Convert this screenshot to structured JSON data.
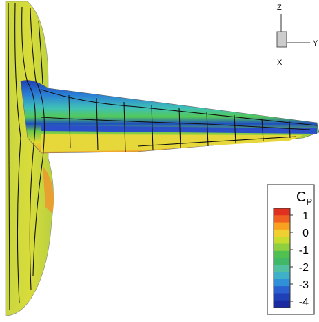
{
  "axes_triad": {
    "z": "Z",
    "y": "Y",
    "x": "X"
  },
  "legend": {
    "title": "C",
    "subscript": "P",
    "ticks": [
      1,
      0,
      -1,
      -2,
      -3,
      -4
    ]
  }
}
